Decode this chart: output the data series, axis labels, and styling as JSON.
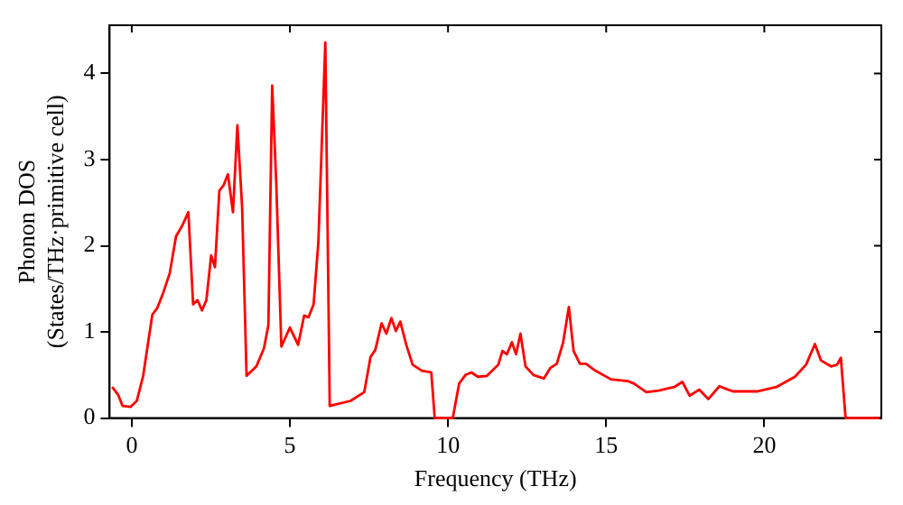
{
  "chart_data": {
    "type": "line",
    "xlabel": "Frequency (THz)",
    "ylabel": "Phonon DOS\n(States/THz·primitive cell)",
    "xlim": [
      -0.7,
      23.7
    ],
    "ylim": [
      0,
      4.56
    ],
    "xticks": [
      0,
      5,
      10,
      15,
      20
    ],
    "yticks": [
      0,
      1,
      2,
      3,
      4
    ],
    "grid": false,
    "legend": false,
    "marker": "none",
    "line_style": "solid",
    "series": [
      {
        "color": "#ff0000",
        "x": [
          -0.62,
          -0.43,
          -0.29,
          -0.04,
          0.16,
          0.36,
          0.65,
          0.81,
          1.0,
          1.2,
          1.4,
          1.59,
          1.79,
          1.94,
          2.08,
          2.22,
          2.36,
          2.51,
          2.63,
          2.77,
          2.9,
          3.04,
          3.2,
          3.34,
          3.49,
          3.63,
          3.94,
          4.18,
          4.32,
          4.44,
          4.57,
          4.73,
          5.0,
          5.26,
          5.45,
          5.59,
          5.75,
          5.9,
          6.12,
          6.26,
          6.92,
          7.35,
          7.55,
          7.7,
          7.9,
          8.05,
          8.21,
          8.35,
          8.49,
          8.68,
          8.88,
          9.17,
          9.47,
          9.58,
          10.15,
          10.35,
          10.55,
          10.74,
          10.94,
          11.23,
          11.59,
          11.72,
          11.86,
          12.02,
          12.15,
          12.29,
          12.45,
          12.7,
          13.03,
          13.23,
          13.44,
          13.64,
          13.82,
          13.97,
          14.17,
          14.36,
          14.66,
          15.15,
          15.68,
          15.88,
          16.27,
          16.66,
          17.15,
          17.41,
          17.64,
          17.94,
          18.23,
          18.58,
          18.78,
          19.01,
          19.8,
          20.38,
          20.97,
          21.32,
          21.6,
          21.79,
          22.11,
          22.3,
          22.42,
          22.57,
          23.65
        ],
        "values": [
          0.36,
          0.27,
          0.14,
          0.13,
          0.2,
          0.49,
          1.2,
          1.28,
          1.46,
          1.68,
          2.11,
          2.23,
          2.39,
          1.32,
          1.37,
          1.25,
          1.37,
          1.89,
          1.75,
          2.64,
          2.7,
          2.83,
          2.39,
          3.4,
          2.44,
          0.49,
          0.6,
          0.81,
          1.08,
          3.86,
          2.72,
          0.83,
          1.05,
          0.85,
          1.19,
          1.17,
          1.32,
          2.04,
          4.36,
          0.14,
          0.2,
          0.3,
          0.71,
          0.79,
          1.1,
          0.98,
          1.16,
          1.01,
          1.12,
          0.85,
          0.62,
          0.55,
          0.53,
          0,
          0,
          0.4,
          0.5,
          0.53,
          0.48,
          0.49,
          0.62,
          0.78,
          0.74,
          0.88,
          0.74,
          0.98,
          0.6,
          0.5,
          0.46,
          0.58,
          0.63,
          0.88,
          1.29,
          0.78,
          0.63,
          0.63,
          0.55,
          0.45,
          0.43,
          0.4,
          0.3,
          0.32,
          0.36,
          0.42,
          0.26,
          0.33,
          0.22,
          0.37,
          0.34,
          0.31,
          0.31,
          0.36,
          0.48,
          0.62,
          0.86,
          0.67,
          0.6,
          0.62,
          0.7,
          0,
          0
        ]
      }
    ]
  }
}
